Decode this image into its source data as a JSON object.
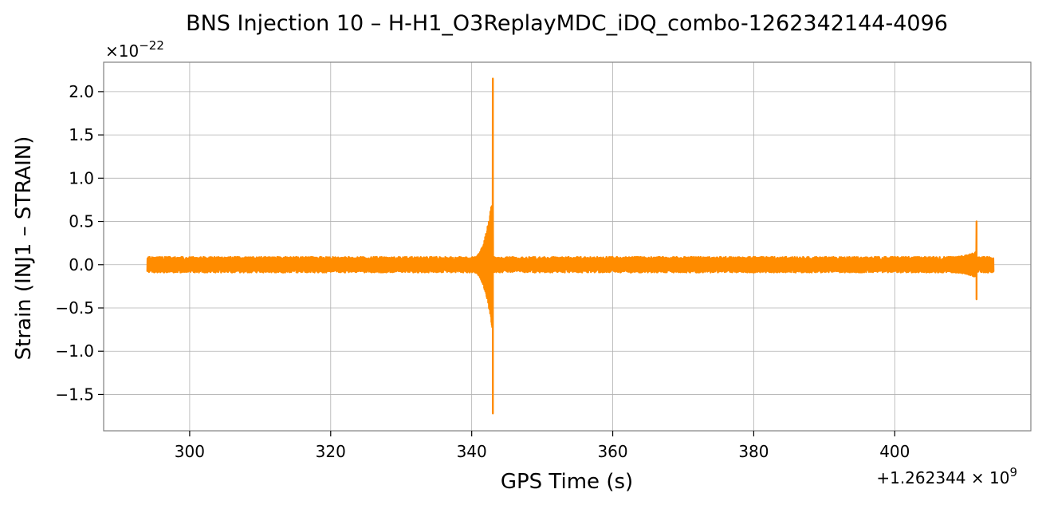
{
  "chart_data": {
    "type": "line",
    "title": "BNS Injection 10 – H-H1_O3ReplayMDC_iDQ_combo-1262342144-4096",
    "xlabel": "GPS Time (s)",
    "ylabel": "Strain (INJ1 – STRAIN)",
    "x_offset_label": "+1.262344 × 10",
    "x_offset_exponent": "9",
    "y_scale_label": "×10",
    "y_scale_exponent": "−22",
    "xlim": [
      287.8,
      419.3
    ],
    "ylim": [
      -1.92,
      2.34
    ],
    "x_ticks": [
      300,
      320,
      340,
      360,
      380,
      400
    ],
    "x_tick_labels": [
      "300",
      "320",
      "340",
      "360",
      "380",
      "400"
    ],
    "y_ticks": [
      2.0,
      1.5,
      1.0,
      0.5,
      0.0,
      -0.5,
      -1.0,
      -1.5
    ],
    "y_tick_labels": [
      "2.0",
      "1.5",
      "1.0",
      "0.5",
      "0.0",
      "−0.5",
      "−1.0",
      "−1.5"
    ],
    "grid": true,
    "series": [
      {
        "color": "#ff8c00",
        "x_range": [
          294.0,
          414.0
        ],
        "baseline_noise_amplitude": 0.09,
        "events": [
          {
            "chirp_start": 340.3,
            "peak_time": 343.0,
            "envelope_end": 0.8,
            "peak_max": 2.15,
            "peak_min": -1.72
          },
          {
            "chirp_start": 408.0,
            "peak_time": 411.6,
            "envelope_end": 0.15,
            "peak_max": 0.5,
            "peak_min": -0.4
          }
        ]
      }
    ]
  }
}
